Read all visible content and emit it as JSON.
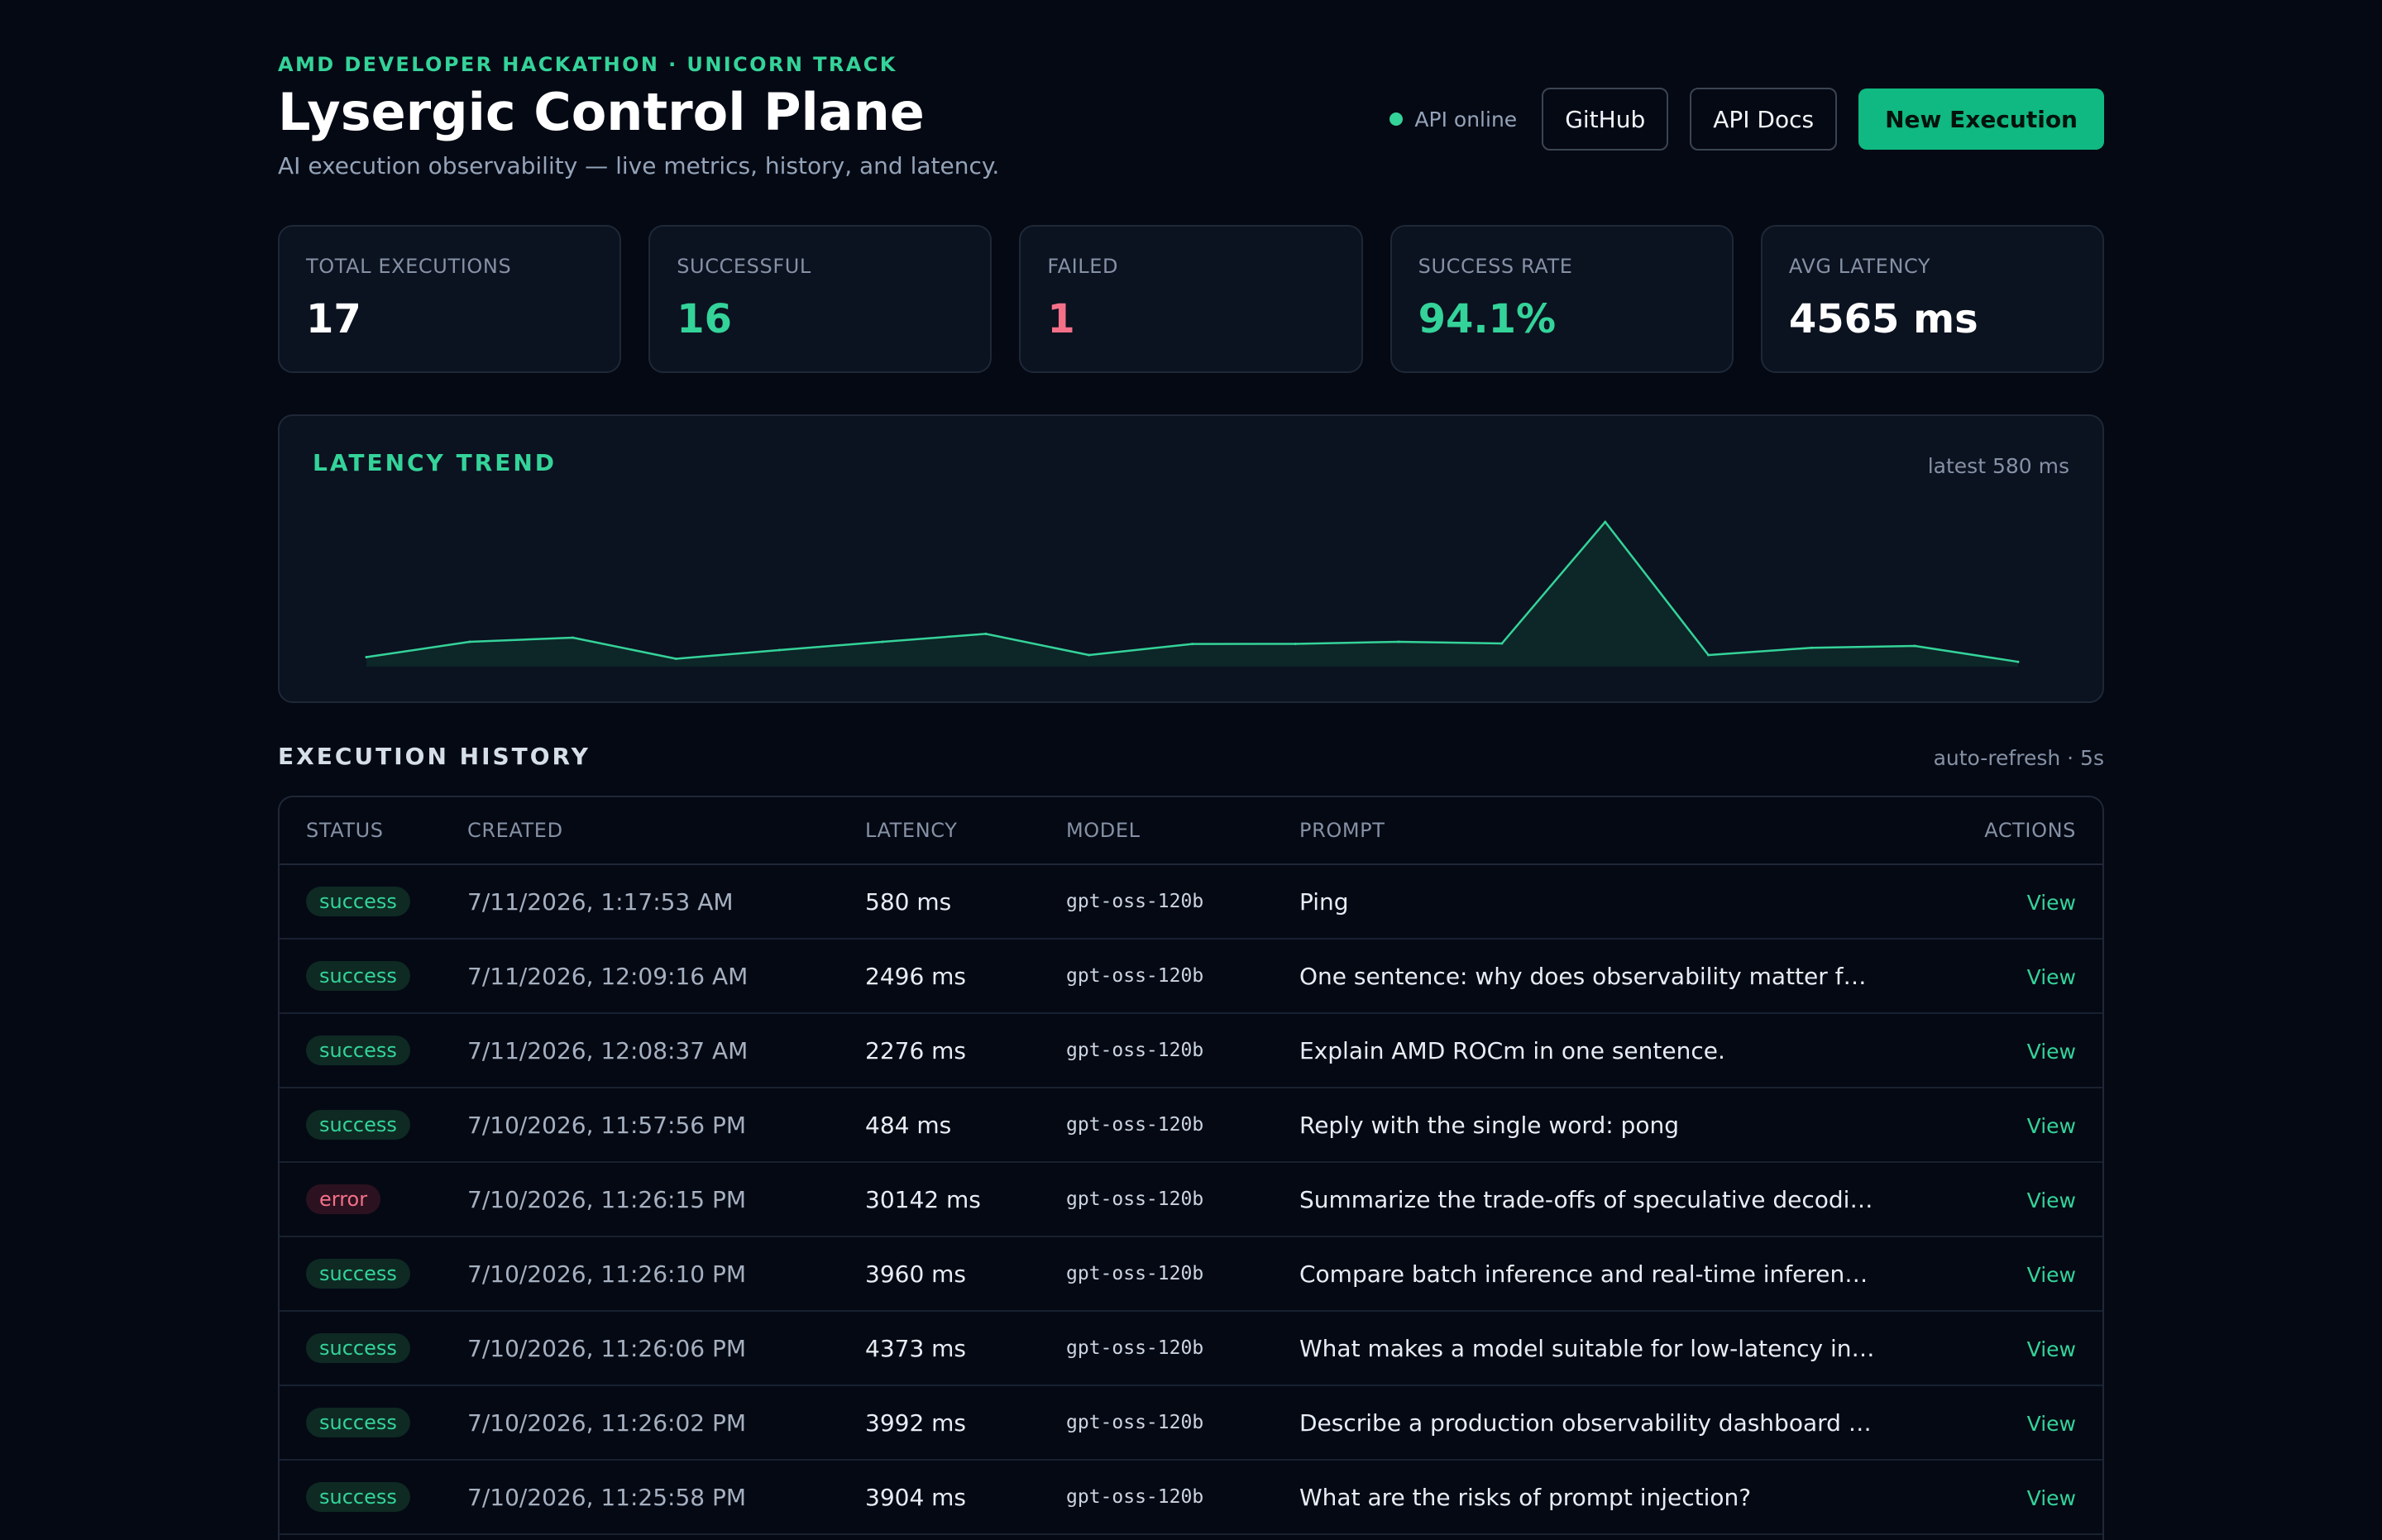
{
  "header": {
    "eyebrow": "AMD DEVELOPER HACKATHON · UNICORN TRACK",
    "title": "Lysergic Control Plane",
    "subtitle": "AI execution observability — live metrics, history, and latency.",
    "api_status": "API online",
    "github_label": "GitHub",
    "api_docs_label": "API Docs",
    "new_execution_label": "New Execution"
  },
  "colors": {
    "accent": "#34d399",
    "primary_button": "#10b981",
    "error": "#f47088",
    "background": "#050914",
    "panel": "#0b1220"
  },
  "stats": [
    {
      "label": "TOTAL EXECUTIONS",
      "value": "17",
      "color": "#ffffff"
    },
    {
      "label": "SUCCESSFUL",
      "value": "16",
      "color": "#34d399"
    },
    {
      "label": "FAILED",
      "value": "1",
      "color": "#f47088"
    },
    {
      "label": "SUCCESS RATE",
      "value": "94.1%",
      "color": "#34d399"
    },
    {
      "label": "AVG LATENCY",
      "value": "4565 ms",
      "color": "#ffffff"
    }
  ],
  "latency": {
    "title": "LATENCY TREND",
    "latest": "latest 580 ms"
  },
  "chart_data": {
    "type": "area",
    "title": "LATENCY TREND",
    "annotation": "latest 580 ms",
    "grid": false,
    "legend": "none",
    "series": [
      {
        "values": [
          1150,
          3000,
          3500,
          950,
          2000,
          3000,
          3960,
          1400,
          2740,
          2750,
          3000,
          2800,
          17500,
          1400,
          2276,
          2496,
          580
        ]
      }
    ]
  },
  "history": {
    "title": "EXECUTION HISTORY",
    "refresh": "auto-refresh · 5s",
    "columns": {
      "status": "STATUS",
      "created": "CREATED",
      "latency": "LATENCY",
      "model": "MODEL",
      "prompt": "PROMPT",
      "actions": "ACTIONS"
    },
    "rows": [
      {
        "status": "success",
        "created": "7/11/2026, 1:17:53 AM",
        "latency": "580 ms",
        "model": "gpt-oss-120b",
        "prompt": "Ping",
        "action": "View"
      },
      {
        "status": "success",
        "created": "7/11/2026, 12:09:16 AM",
        "latency": "2496 ms",
        "model": "gpt-oss-120b",
        "prompt": "One sentence: why does observability matter f…",
        "action": "View"
      },
      {
        "status": "success",
        "created": "7/11/2026, 12:08:37 AM",
        "latency": "2276 ms",
        "model": "gpt-oss-120b",
        "prompt": "Explain AMD ROCm in one sentence.",
        "action": "View"
      },
      {
        "status": "success",
        "created": "7/10/2026, 11:57:56 PM",
        "latency": "484 ms",
        "model": "gpt-oss-120b",
        "prompt": "Reply with the single word: pong",
        "action": "View"
      },
      {
        "status": "error",
        "created": "7/10/2026, 11:26:15 PM",
        "latency": "30142 ms",
        "model": "gpt-oss-120b",
        "prompt": "Summarize the trade-offs of speculative decodi…",
        "action": "View"
      },
      {
        "status": "success",
        "created": "7/10/2026, 11:26:10 PM",
        "latency": "3960 ms",
        "model": "gpt-oss-120b",
        "prompt": "Compare batch inference and real-time inferen…",
        "action": "View"
      },
      {
        "status": "success",
        "created": "7/10/2026, 11:26:06 PM",
        "latency": "4373 ms",
        "model": "gpt-oss-120b",
        "prompt": "What makes a model suitable for low-latency in…",
        "action": "View"
      },
      {
        "status": "success",
        "created": "7/10/2026, 11:26:02 PM",
        "latency": "3992 ms",
        "model": "gpt-oss-120b",
        "prompt": "Describe a production observability dashboard …",
        "action": "View"
      },
      {
        "status": "success",
        "created": "7/10/2026, 11:25:58 PM",
        "latency": "3904 ms",
        "model": "gpt-oss-120b",
        "prompt": "What are the risks of prompt injection?",
        "action": "View"
      }
    ]
  }
}
